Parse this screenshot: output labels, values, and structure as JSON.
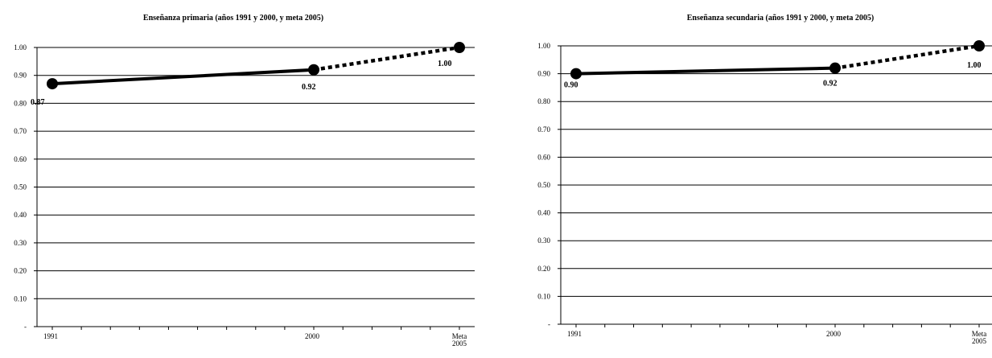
{
  "chart_data": [
    {
      "type": "line",
      "title": "Enseñanza primaria (años 1991 y 2000, y meta 2005)",
      "categories": [
        "1991",
        "2000",
        "Meta 2005"
      ],
      "ylim": [
        0,
        1.0
      ],
      "yticks": [
        "-",
        "0.10",
        "0.20",
        "0.30",
        "0.40",
        "0.50",
        "0.60",
        "0.70",
        "0.80",
        "0.90",
        "1.00"
      ],
      "grid": true,
      "series": [
        {
          "style": "solid",
          "x": [
            "1991",
            "2000"
          ],
          "values": [
            0.87,
            0.92
          ]
        },
        {
          "style": "dotted",
          "x": [
            "2000",
            "Meta 2005"
          ],
          "values": [
            0.92,
            1.0
          ]
        }
      ],
      "data_labels": [
        "0.87",
        "0.92",
        "1.00"
      ]
    },
    {
      "type": "line",
      "title": "Enseñanza secundaria (años 1991 y 2000, y meta 2005)",
      "categories": [
        "1991",
        "2000",
        "Meta 2005"
      ],
      "ylim": [
        0,
        1.0
      ],
      "yticks": [
        "-",
        "0.10",
        "0.20",
        "0.30",
        "0.40",
        "0.50",
        "0.60",
        "0.70",
        "0.80",
        "0.90",
        "1.00"
      ],
      "grid": true,
      "series": [
        {
          "style": "solid",
          "x": [
            "1991",
            "2000"
          ],
          "values": [
            0.9,
            0.92
          ]
        },
        {
          "style": "dotted",
          "x": [
            "2000",
            "Meta 2005"
          ],
          "values": [
            0.92,
            1.0
          ]
        }
      ],
      "data_labels": [
        "0.90",
        "0.92",
        "1.00"
      ]
    }
  ]
}
